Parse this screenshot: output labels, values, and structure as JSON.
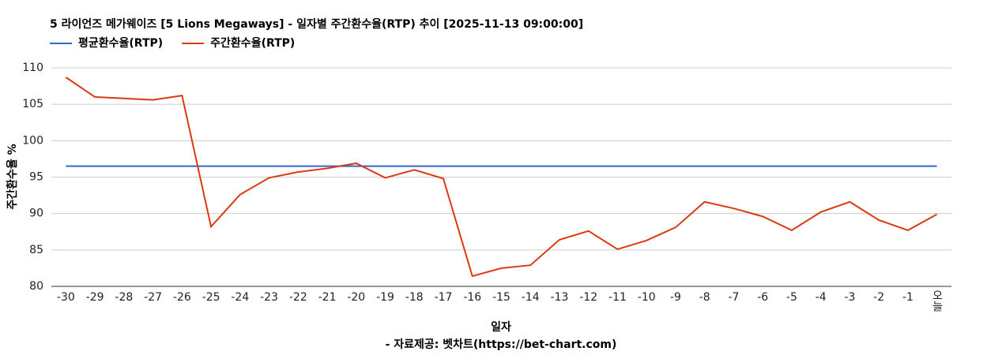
{
  "chart_data": {
    "type": "line",
    "title": "5 라이언즈 메가웨이즈 [5 Lions Megaways] - 일자별 주간환수율(RTP) 추이 [2025-11-13 09:00:00]",
    "x_label": "일자",
    "y_label": "주간환수율 %",
    "source": "- 자료제공: 벳차트(https://bet-chart.com)",
    "categories": [
      "-30",
      "-29",
      "-28",
      "-27",
      "-26",
      "-25",
      "-24",
      "-23",
      "-22",
      "-21",
      "-20",
      "-19",
      "-18",
      "-17",
      "-16",
      "-15",
      "-14",
      "-13",
      "-12",
      "-11",
      "-10",
      "-9",
      "-8",
      "-7",
      "-6",
      "-5",
      "-4",
      "-3",
      "-2",
      "-1",
      "오늘"
    ],
    "series": [
      {
        "name": "평균환수율(RTP)",
        "color": "#3366cc",
        "values": [
          96.5,
          96.5,
          96.5,
          96.5,
          96.5,
          96.5,
          96.5,
          96.5,
          96.5,
          96.5,
          96.5,
          96.5,
          96.5,
          96.5,
          96.5,
          96.5,
          96.5,
          96.5,
          96.5,
          96.5,
          96.5,
          96.5,
          96.5,
          96.5,
          96.5,
          96.5,
          96.5,
          96.5,
          96.5,
          96.5,
          96.5
        ]
      },
      {
        "name": "주간환수율(RTP)",
        "color": "#dc3912",
        "values": [
          108.7,
          106.0,
          105.8,
          105.6,
          106.2,
          88.2,
          92.6,
          94.9,
          95.7,
          96.2,
          96.9,
          94.9,
          96.0,
          94.8,
          81.4,
          82.5,
          82.9,
          86.4,
          87.6,
          85.1,
          86.3,
          88.1,
          91.6,
          90.7,
          89.6,
          87.7,
          90.2,
          91.6,
          89.1,
          87.7,
          89.9
        ]
      }
    ],
    "ylim": [
      80,
      110
    ],
    "yticks": [
      80,
      85,
      90,
      95,
      100,
      105,
      110
    ],
    "grid": true,
    "legend": "top-left"
  }
}
